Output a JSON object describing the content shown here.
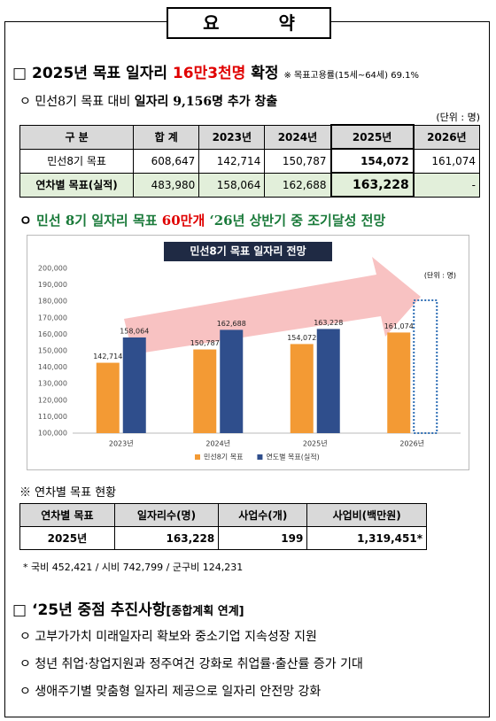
{
  "header": {
    "title": "요 약"
  },
  "section1": {
    "marker": "□",
    "heading": "2025년 목표 일자리 ",
    "heading_highlight": "16만3천명",
    "heading_suffix": " 확정",
    "note": "※ 목표고용률(15세~64세) 69.1%",
    "bullet": {
      "marker": "ㅇ",
      "text": "민선8기 목표 대비 ",
      "text_bold": "일자리 9,156명 추가 창출"
    },
    "unit": "(단위 : 명)",
    "table": {
      "header": [
        "구 분",
        "합 계",
        "2023년",
        "2024년",
        "2025년",
        "2026년"
      ],
      "rows": [
        [
          "민선8기 목표",
          "608,647",
          "142,714",
          "150,787",
          "154,072",
          "161,074"
        ],
        [
          "연차별 목표(실적)",
          "483,980",
          "158,064",
          "162,688",
          "163,228",
          "-"
        ]
      ]
    },
    "bullet2": {
      "marker": "ㅇ",
      "text": "민선 8기 일자리 목표 ",
      "text_highlight": "60만개",
      "text_suffix": " ‘26년 상반기 중 조기달성 전망"
    }
  },
  "chart_data": {
    "type": "bar",
    "title": "민선8기 목표 일자리 전망",
    "unit": "(단위 : 명)",
    "categories": [
      "2023년",
      "2024년",
      "2025년",
      "2026년"
    ],
    "series": [
      {
        "name": "민선8기 목표",
        "color": "#f39a34",
        "values": [
          142714,
          150787,
          154072,
          161074
        ],
        "value_labels": [
          "142,714",
          "150,787",
          "154,072",
          "161,074"
        ]
      },
      {
        "name": "연도별 목표(실적)",
        "color": "#2f4e8c",
        "values": [
          158064,
          162688,
          163228,
          null
        ],
        "value_labels": [
          "158,064",
          "162,688",
          "163,228",
          null
        ]
      }
    ],
    "ylim": [
      100000,
      200000
    ],
    "yticks": [
      {
        "value": 100000,
        "label": "100,000"
      },
      {
        "value": 110000,
        "label": "110,000"
      },
      {
        "value": 120000,
        "label": "120,000"
      },
      {
        "value": 130000,
        "label": "130,000"
      },
      {
        "value": 140000,
        "label": "140,000"
      },
      {
        "value": 150000,
        "label": "150,000"
      },
      {
        "value": 160000,
        "label": "160,000"
      },
      {
        "value": 170000,
        "label": "170,000"
      },
      {
        "value": 180000,
        "label": "180,000"
      },
      {
        "value": 190000,
        "label": "190,000"
      },
      {
        "value": 200000,
        "label": "200,000"
      }
    ],
    "grid": false
  },
  "section2": {
    "label": "※ 연차별 목표 현황",
    "table": {
      "header": [
        "연차별 목표",
        "일자리수(명)",
        "사업수(개)",
        "사업비(백만원)"
      ],
      "rows": [
        [
          "2025년",
          "163,228",
          "199",
          "1,319,451*"
        ]
      ]
    },
    "footnote": "* 국비 452,421 / 시비 742,799 / 군구비 124,231"
  },
  "section3": {
    "marker": "□",
    "heading": "‘25년 중점 추진사항",
    "heading_note": "[종합계획 연계]",
    "items": [
      {
        "marker": "ㅇ",
        "text": "고부가가치 미래일자리 확보와 중소기업 지속성장 지원"
      },
      {
        "marker": "ㅇ",
        "text": "청년 취업·창업지원과 정주여건 강화로 취업률·출산률 증가 기대"
      },
      {
        "marker": "ㅇ",
        "text": "생애주기별 맞춤형 일자리 제공으로 일자리 안전망 강화"
      }
    ]
  }
}
